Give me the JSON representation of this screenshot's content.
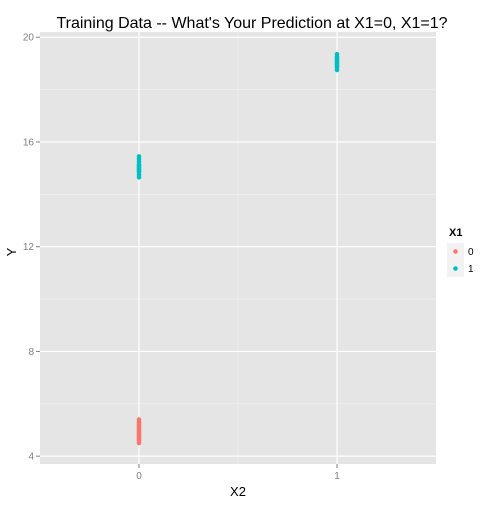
{
  "chart_data": {
    "type": "scatter",
    "title": "Training Data -- What's Your Prediction at X1=0, X1=1?",
    "xlabel": "X2",
    "ylabel": "Y",
    "xlim": [
      -0.5,
      1.5
    ],
    "ylim": [
      3.7,
      20.2
    ],
    "x_ticks": [
      {
        "value": 0,
        "label": "0"
      },
      {
        "value": 1,
        "label": "1"
      }
    ],
    "y_ticks": [
      {
        "value": 4,
        "label": "4"
      },
      {
        "value": 8,
        "label": "8"
      },
      {
        "value": 12,
        "label": "12"
      },
      {
        "value": 16,
        "label": "16"
      },
      {
        "value": 20,
        "label": "20"
      }
    ],
    "grid": true,
    "legend": {
      "title": "X1",
      "placement": "right",
      "entries": [
        {
          "label": "0",
          "color": "#F8766D"
        },
        {
          "label": "1",
          "color": "#00BFC4"
        }
      ]
    },
    "series": [
      {
        "label": "0",
        "color": "#F8766D",
        "points": [
          {
            "x": 0,
            "y": 4.5
          },
          {
            "x": 0,
            "y": 4.6
          },
          {
            "x": 0,
            "y": 4.65
          },
          {
            "x": 0,
            "y": 4.7
          },
          {
            "x": 0,
            "y": 4.75
          },
          {
            "x": 0,
            "y": 4.8
          },
          {
            "x": 0,
            "y": 4.85
          },
          {
            "x": 0,
            "y": 4.9
          },
          {
            "x": 0,
            "y": 4.95
          },
          {
            "x": 0,
            "y": 5.0
          },
          {
            "x": 0,
            "y": 5.05
          },
          {
            "x": 0,
            "y": 5.1
          },
          {
            "x": 0,
            "y": 5.15
          },
          {
            "x": 0,
            "y": 5.2
          },
          {
            "x": 0,
            "y": 5.25
          },
          {
            "x": 0,
            "y": 5.3
          },
          {
            "x": 0,
            "y": 5.4
          }
        ]
      },
      {
        "label": "1",
        "color": "#00BFC4",
        "points": [
          {
            "x": 0,
            "y": 14.65
          },
          {
            "x": 0,
            "y": 14.75
          },
          {
            "x": 0,
            "y": 14.85
          },
          {
            "x": 0,
            "y": 14.9
          },
          {
            "x": 0,
            "y": 14.95
          },
          {
            "x": 0,
            "y": 15.0
          },
          {
            "x": 0,
            "y": 15.05
          },
          {
            "x": 0,
            "y": 15.1
          },
          {
            "x": 0,
            "y": 15.15
          },
          {
            "x": 0,
            "y": 15.25
          },
          {
            "x": 0,
            "y": 15.35
          },
          {
            "x": 0,
            "y": 15.45
          },
          {
            "x": 1,
            "y": 18.75
          },
          {
            "x": 1,
            "y": 18.85
          },
          {
            "x": 1,
            "y": 18.9
          },
          {
            "x": 1,
            "y": 18.95
          },
          {
            "x": 1,
            "y": 19.0
          },
          {
            "x": 1,
            "y": 19.05
          },
          {
            "x": 1,
            "y": 19.1
          },
          {
            "x": 1,
            "y": 19.15
          },
          {
            "x": 1,
            "y": 19.2
          },
          {
            "x": 1,
            "y": 19.25
          },
          {
            "x": 1,
            "y": 19.35
          }
        ]
      }
    ]
  }
}
